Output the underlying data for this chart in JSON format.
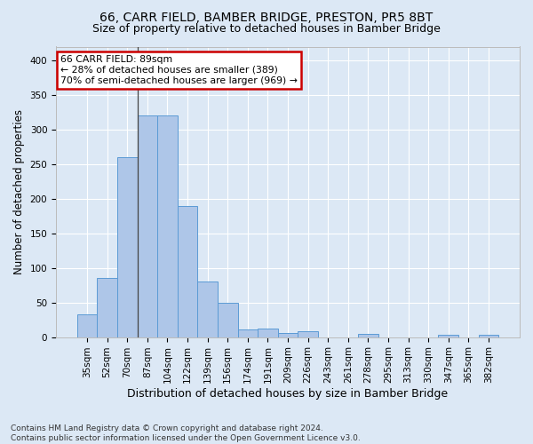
{
  "title1": "66, CARR FIELD, BAMBER BRIDGE, PRESTON, PR5 8BT",
  "title2": "Size of property relative to detached houses in Bamber Bridge",
  "xlabel": "Distribution of detached houses by size in Bamber Bridge",
  "ylabel": "Number of detached properties",
  "footnote": "Contains HM Land Registry data © Crown copyright and database right 2024.\nContains public sector information licensed under the Open Government Licence v3.0.",
  "categories": [
    "35sqm",
    "52sqm",
    "70sqm",
    "87sqm",
    "104sqm",
    "122sqm",
    "139sqm",
    "156sqm",
    "174sqm",
    "191sqm",
    "209sqm",
    "226sqm",
    "243sqm",
    "261sqm",
    "278sqm",
    "295sqm",
    "313sqm",
    "330sqm",
    "347sqm",
    "365sqm",
    "382sqm"
  ],
  "values": [
    33,
    86,
    260,
    321,
    321,
    190,
    80,
    50,
    11,
    12,
    6,
    8,
    0,
    0,
    4,
    0,
    0,
    0,
    3,
    0,
    3
  ],
  "bar_color": "#aec6e8",
  "bar_edge_color": "#5b9bd5",
  "annotation_box_text": "66 CARR FIELD: 89sqm\n← 28% of detached houses are smaller (389)\n70% of semi-detached houses are larger (969) →",
  "annotation_box_color": "#ffffff",
  "annotation_box_edge_color": "#cc0000",
  "vline_index": 2.5,
  "ylim": [
    0,
    420
  ],
  "yticks": [
    0,
    50,
    100,
    150,
    200,
    250,
    300,
    350,
    400
  ],
  "bg_color": "#dce8f5",
  "grid_color": "#ffffff",
  "title1_fontsize": 10,
  "title2_fontsize": 9,
  "xlabel_fontsize": 9,
  "ylabel_fontsize": 8.5,
  "tick_fontsize": 7.5,
  "footnote_fontsize": 6.5
}
